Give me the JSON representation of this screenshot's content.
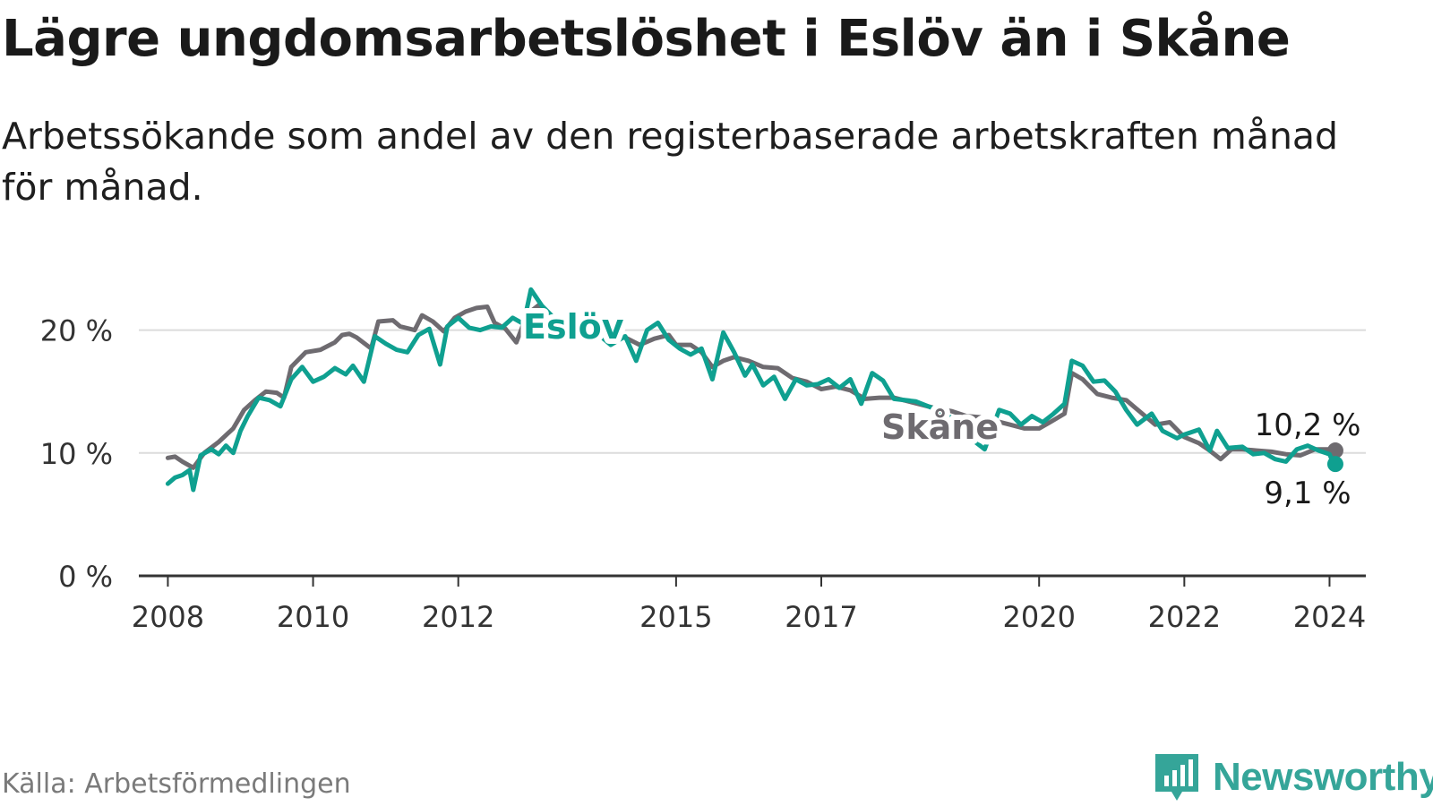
{
  "title": "Lägre ungdomsarbetslöshet i Eslöv än i Skåne",
  "subtitle": "Arbetssökande som andel av den registerbaserade arbetskraften månad för månad.",
  "source": "Källa: Arbetsförmedlingen",
  "brand": "Newsworthy",
  "colors": {
    "eslov": "#0fa090",
    "skane": "#6e6b70",
    "grid": "#dcdcdc",
    "axis": "#333333",
    "brand": "#35a599"
  },
  "chart_data": {
    "type": "line",
    "ylim": [
      0,
      25
    ],
    "yticks": [
      0,
      10,
      20
    ],
    "ytick_labels": [
      "0 %",
      "10 %",
      "20 %"
    ],
    "xlim": [
      2007.6,
      2024.5
    ],
    "xticks": [
      2008,
      2010,
      2012,
      2015,
      2017,
      2020,
      2022,
      2024
    ],
    "xtick_labels": [
      "2008",
      "2010",
      "2012",
      "2015",
      "2017",
      "2020",
      "2022",
      "2024"
    ],
    "series": [
      {
        "name": "Skåne",
        "label": "Skåne",
        "color": "#6e6b70",
        "end_label": "10,2 %",
        "points": [
          [
            2008.0,
            9.6
          ],
          [
            2008.1,
            9.7
          ],
          [
            2008.2,
            9.3
          ],
          [
            2008.35,
            8.8
          ],
          [
            2008.5,
            10.0
          ],
          [
            2008.7,
            10.9
          ],
          [
            2008.9,
            12.0
          ],
          [
            2009.05,
            13.5
          ],
          [
            2009.2,
            14.3
          ],
          [
            2009.35,
            15.0
          ],
          [
            2009.5,
            14.9
          ],
          [
            2009.6,
            14.5
          ],
          [
            2009.7,
            17.0
          ],
          [
            2009.9,
            18.2
          ],
          [
            2010.1,
            18.4
          ],
          [
            2010.3,
            19.0
          ],
          [
            2010.4,
            19.6
          ],
          [
            2010.5,
            19.7
          ],
          [
            2010.6,
            19.4
          ],
          [
            2010.8,
            18.5
          ],
          [
            2010.9,
            20.7
          ],
          [
            2011.1,
            20.8
          ],
          [
            2011.2,
            20.3
          ],
          [
            2011.4,
            20.0
          ],
          [
            2011.5,
            21.2
          ],
          [
            2011.65,
            20.7
          ],
          [
            2011.8,
            19.9
          ],
          [
            2011.95,
            21.0
          ],
          [
            2012.1,
            21.5
          ],
          [
            2012.25,
            21.8
          ],
          [
            2012.4,
            21.9
          ],
          [
            2012.5,
            20.6
          ],
          [
            2012.65,
            20.1
          ],
          [
            2012.8,
            19.0
          ],
          [
            2012.95,
            21.3
          ],
          [
            2013.1,
            22.0
          ],
          [
            2013.3,
            21.0
          ],
          [
            2013.5,
            20.4
          ],
          [
            2013.7,
            19.8
          ],
          [
            2013.9,
            19.5
          ],
          [
            2014.1,
            19.8
          ],
          [
            2014.3,
            19.4
          ],
          [
            2014.5,
            18.8
          ],
          [
            2014.7,
            19.3
          ],
          [
            2014.9,
            19.6
          ],
          [
            2015.0,
            18.8
          ],
          [
            2015.2,
            18.8
          ],
          [
            2015.35,
            18.2
          ],
          [
            2015.5,
            17.0
          ],
          [
            2015.65,
            17.5
          ],
          [
            2015.8,
            17.8
          ],
          [
            2016.0,
            17.5
          ],
          [
            2016.2,
            17.0
          ],
          [
            2016.4,
            16.9
          ],
          [
            2016.6,
            16.1
          ],
          [
            2016.8,
            15.8
          ],
          [
            2017.0,
            15.2
          ],
          [
            2017.2,
            15.4
          ],
          [
            2017.4,
            15.1
          ],
          [
            2017.6,
            14.4
          ],
          [
            2017.8,
            14.5
          ],
          [
            2018.0,
            14.5
          ],
          [
            2018.2,
            14.2
          ],
          [
            2018.4,
            13.9
          ],
          [
            2018.6,
            13.6
          ],
          [
            2018.8,
            13.4
          ],
          [
            2019.0,
            13.0
          ],
          [
            2019.2,
            12.9
          ],
          [
            2019.4,
            12.6
          ],
          [
            2019.6,
            12.3
          ],
          [
            2019.8,
            12.0
          ],
          [
            2020.0,
            12.0
          ],
          [
            2020.15,
            12.5
          ],
          [
            2020.35,
            13.2
          ],
          [
            2020.45,
            16.5
          ],
          [
            2020.6,
            16.0
          ],
          [
            2020.8,
            14.8
          ],
          [
            2021.0,
            14.5
          ],
          [
            2021.2,
            14.3
          ],
          [
            2021.4,
            13.3
          ],
          [
            2021.6,
            12.3
          ],
          [
            2021.8,
            12.5
          ],
          [
            2022.0,
            11.3
          ],
          [
            2022.2,
            10.8
          ],
          [
            2022.35,
            10.2
          ],
          [
            2022.5,
            9.5
          ],
          [
            2022.65,
            10.3
          ],
          [
            2022.8,
            10.3
          ],
          [
            2023.0,
            10.2
          ],
          [
            2023.2,
            10.1
          ],
          [
            2023.4,
            9.9
          ],
          [
            2023.6,
            9.8
          ],
          [
            2023.8,
            10.3
          ],
          [
            2024.0,
            10.3
          ],
          [
            2024.08,
            10.2
          ]
        ]
      },
      {
        "name": "Eslöv",
        "label": "Eslöv",
        "color": "#0fa090",
        "end_label": "9,1 %",
        "points": [
          [
            2008.0,
            7.5
          ],
          [
            2008.1,
            8.0
          ],
          [
            2008.2,
            8.2
          ],
          [
            2008.3,
            8.6
          ],
          [
            2008.35,
            7.0
          ],
          [
            2008.45,
            9.8
          ],
          [
            2008.6,
            10.3
          ],
          [
            2008.7,
            9.9
          ],
          [
            2008.8,
            10.6
          ],
          [
            2008.9,
            10.0
          ],
          [
            2009.0,
            11.8
          ],
          [
            2009.1,
            13.0
          ],
          [
            2009.25,
            14.5
          ],
          [
            2009.4,
            14.3
          ],
          [
            2009.55,
            13.8
          ],
          [
            2009.7,
            16.0
          ],
          [
            2009.85,
            17.0
          ],
          [
            2010.0,
            15.8
          ],
          [
            2010.15,
            16.2
          ],
          [
            2010.3,
            16.9
          ],
          [
            2010.45,
            16.4
          ],
          [
            2010.55,
            17.1
          ],
          [
            2010.7,
            15.8
          ],
          [
            2010.85,
            19.5
          ],
          [
            2011.0,
            18.9
          ],
          [
            2011.15,
            18.4
          ],
          [
            2011.3,
            18.2
          ],
          [
            2011.45,
            19.6
          ],
          [
            2011.6,
            20.1
          ],
          [
            2011.75,
            17.2
          ],
          [
            2011.85,
            20.3
          ],
          [
            2012.0,
            21.0
          ],
          [
            2012.15,
            20.2
          ],
          [
            2012.3,
            20.0
          ],
          [
            2012.45,
            20.3
          ],
          [
            2012.6,
            20.2
          ],
          [
            2012.75,
            21.0
          ],
          [
            2012.9,
            20.5
          ],
          [
            2013.0,
            23.3
          ],
          [
            2013.15,
            22.0
          ],
          [
            2013.4,
            20.5
          ],
          [
            2013.6,
            19.2
          ],
          [
            2013.9,
            19.8
          ],
          [
            2014.1,
            18.8
          ],
          [
            2014.3,
            19.5
          ],
          [
            2014.45,
            17.5
          ],
          [
            2014.6,
            20.0
          ],
          [
            2014.75,
            20.6
          ],
          [
            2014.9,
            19.2
          ],
          [
            2015.05,
            18.5
          ],
          [
            2015.2,
            18.0
          ],
          [
            2015.35,
            18.5
          ],
          [
            2015.5,
            16.0
          ],
          [
            2015.65,
            19.8
          ],
          [
            2015.8,
            18.2
          ],
          [
            2015.95,
            16.3
          ],
          [
            2016.05,
            17.2
          ],
          [
            2016.2,
            15.5
          ],
          [
            2016.35,
            16.2
          ],
          [
            2016.5,
            14.4
          ],
          [
            2016.65,
            16.0
          ],
          [
            2016.8,
            15.5
          ],
          [
            2016.95,
            15.6
          ],
          [
            2017.1,
            16.0
          ],
          [
            2017.25,
            15.3
          ],
          [
            2017.4,
            16.0
          ],
          [
            2017.55,
            14.0
          ],
          [
            2017.7,
            16.5
          ],
          [
            2017.85,
            15.9
          ],
          [
            2018.0,
            14.4
          ],
          [
            2018.3,
            14.2
          ],
          [
            2018.6,
            13.5
          ],
          [
            2018.9,
            12.5
          ],
          [
            2019.1,
            11.0
          ],
          [
            2019.25,
            10.3
          ],
          [
            2019.45,
            13.5
          ],
          [
            2019.6,
            13.2
          ],
          [
            2019.75,
            12.3
          ],
          [
            2019.9,
            13.0
          ],
          [
            2020.05,
            12.5
          ],
          [
            2020.2,
            13.2
          ],
          [
            2020.35,
            14.0
          ],
          [
            2020.45,
            17.5
          ],
          [
            2020.6,
            17.1
          ],
          [
            2020.75,
            15.8
          ],
          [
            2020.9,
            15.9
          ],
          [
            2021.05,
            15.0
          ],
          [
            2021.2,
            13.5
          ],
          [
            2021.35,
            12.3
          ],
          [
            2021.55,
            13.2
          ],
          [
            2021.7,
            11.8
          ],
          [
            2021.9,
            11.2
          ],
          [
            2022.0,
            11.5
          ],
          [
            2022.2,
            11.9
          ],
          [
            2022.35,
            10.2
          ],
          [
            2022.45,
            11.8
          ],
          [
            2022.6,
            10.4
          ],
          [
            2022.8,
            10.5
          ],
          [
            2022.95,
            9.9
          ],
          [
            2023.1,
            10.0
          ],
          [
            2023.25,
            9.5
          ],
          [
            2023.4,
            9.3
          ],
          [
            2023.55,
            10.3
          ],
          [
            2023.7,
            10.6
          ],
          [
            2023.85,
            10.2
          ],
          [
            2024.0,
            9.9
          ],
          [
            2024.05,
            9.2
          ],
          [
            2024.08,
            9.1
          ]
        ]
      }
    ]
  }
}
